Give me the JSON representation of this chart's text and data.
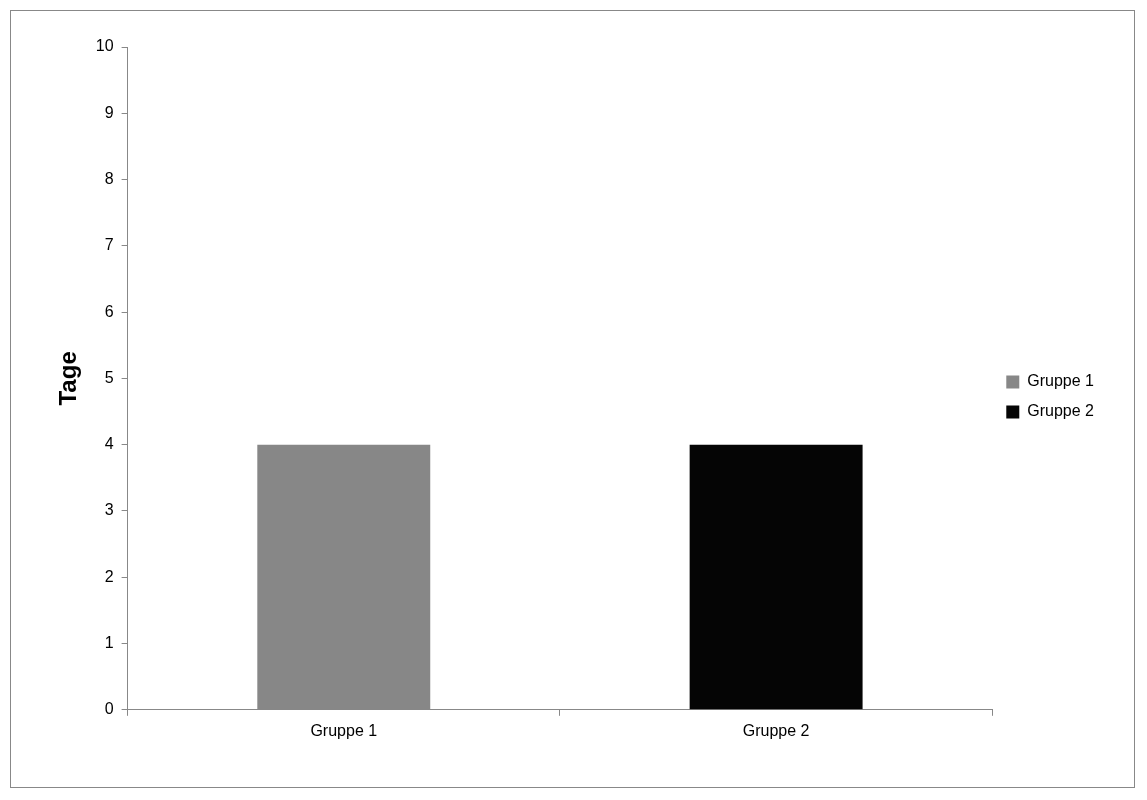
{
  "chart_data": {
    "type": "bar",
    "ylabel": "Tage",
    "categories": [
      "Gruppe 1",
      "Gruppe 2"
    ],
    "series": [
      {
        "name": "Gruppe 1",
        "color": "#878787",
        "values": [
          4,
          null
        ]
      },
      {
        "name": "Gruppe 2",
        "color": "#050505",
        "values": [
          null,
          4
        ]
      }
    ],
    "ylim": [
      0,
      10
    ],
    "yticks": [
      0,
      1,
      2,
      3,
      4,
      5,
      6,
      7,
      8,
      9,
      10
    ],
    "grid": false,
    "legend": "right"
  }
}
